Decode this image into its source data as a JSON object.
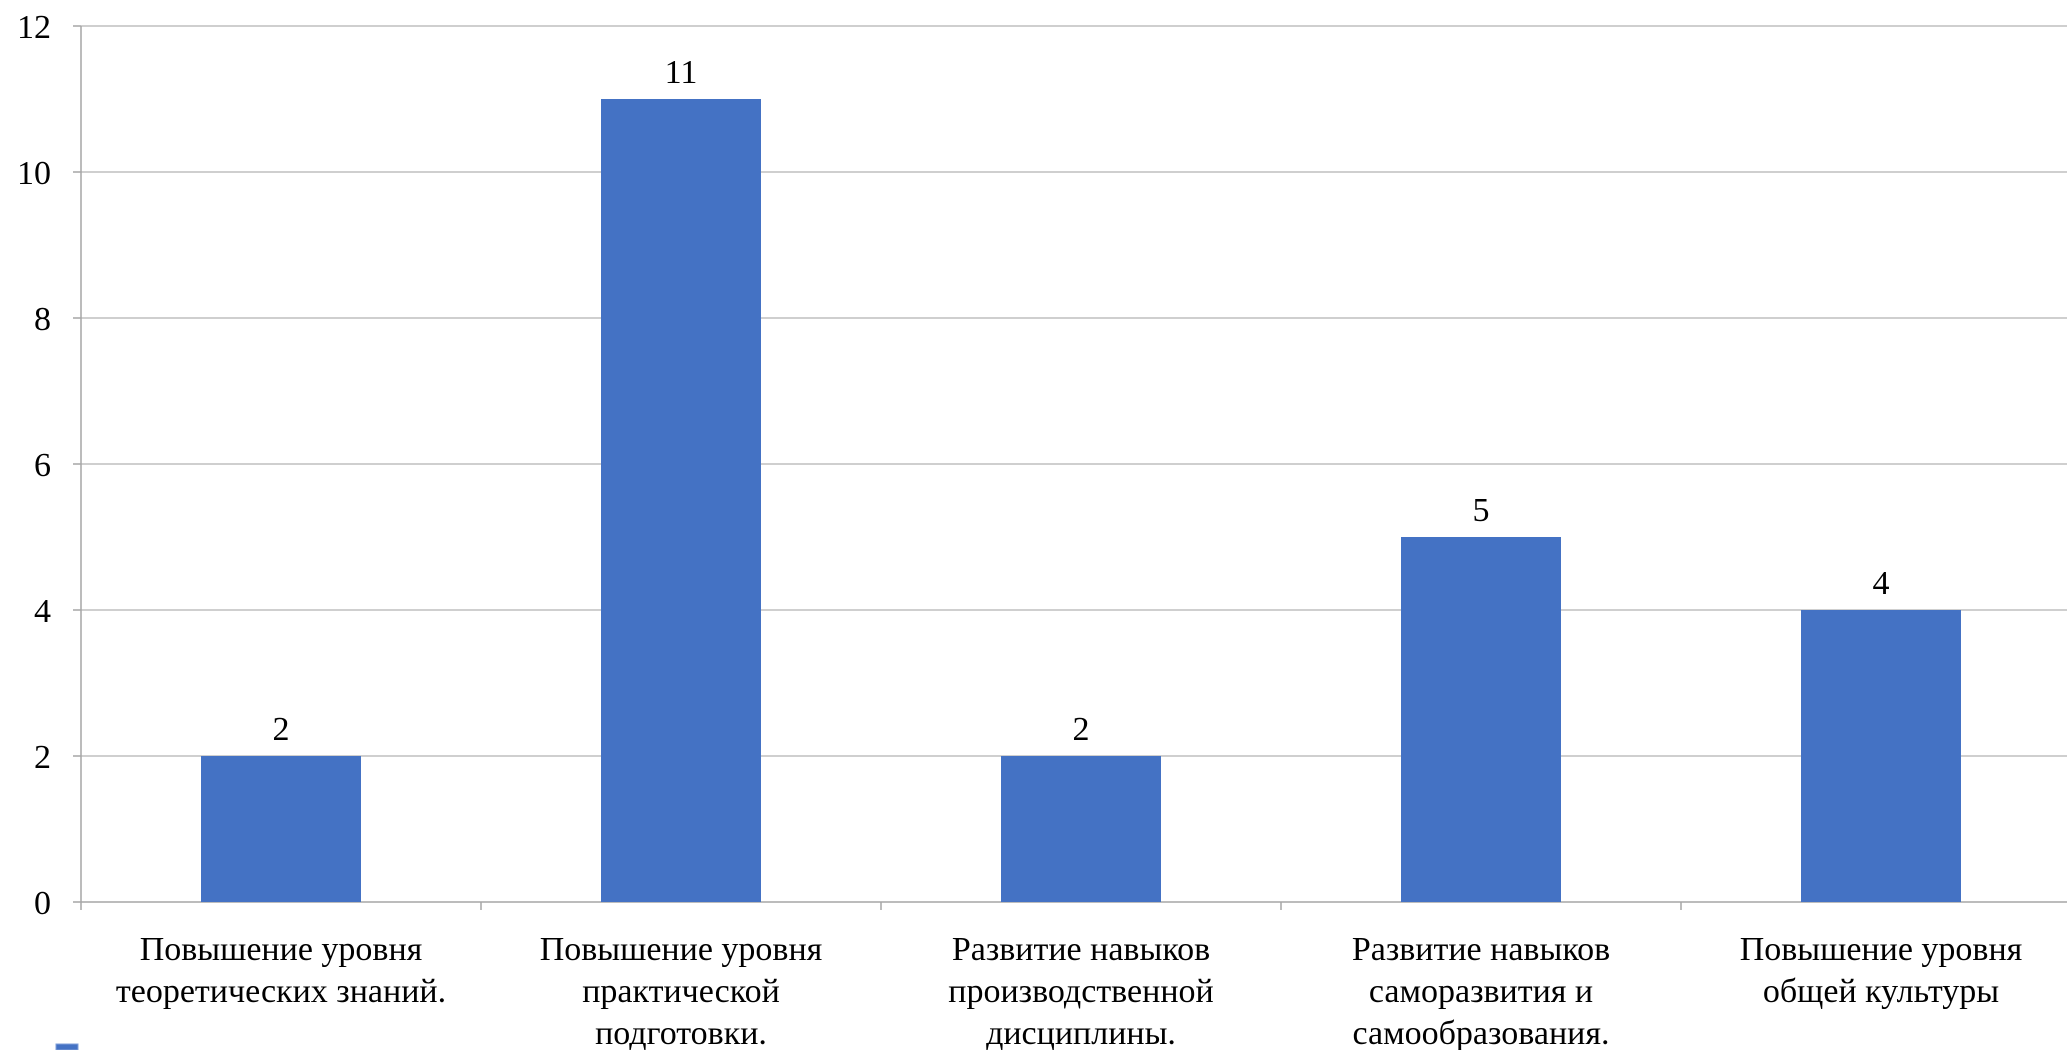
{
  "chart_data": {
    "type": "bar",
    "title": "",
    "xlabel": "",
    "ylabel": "",
    "ylim": [
      0,
      12
    ],
    "yticks": [
      0,
      2,
      4,
      6,
      8,
      10,
      12
    ],
    "grid": true,
    "legend": "bottom-left",
    "bar_color": "#4472C4",
    "grid_color": "#BFBFBF",
    "axis_color": "#A6A6A6",
    "categories": [
      [
        "Повышение уровня",
        "теоретических знаний."
      ],
      [
        "Повышение уровня",
        "практической",
        "подготовки."
      ],
      [
        "Развитие навыков",
        "производственной",
        "дисциплины."
      ],
      [
        "Развитие навыков",
        "саморазвития и",
        "самообразования."
      ],
      [
        "Повышение уровня",
        "общей культуры"
      ]
    ],
    "values": [
      2,
      11,
      2,
      5,
      4
    ],
    "data_labels": [
      "2",
      "11",
      "2",
      "5",
      "4"
    ]
  }
}
